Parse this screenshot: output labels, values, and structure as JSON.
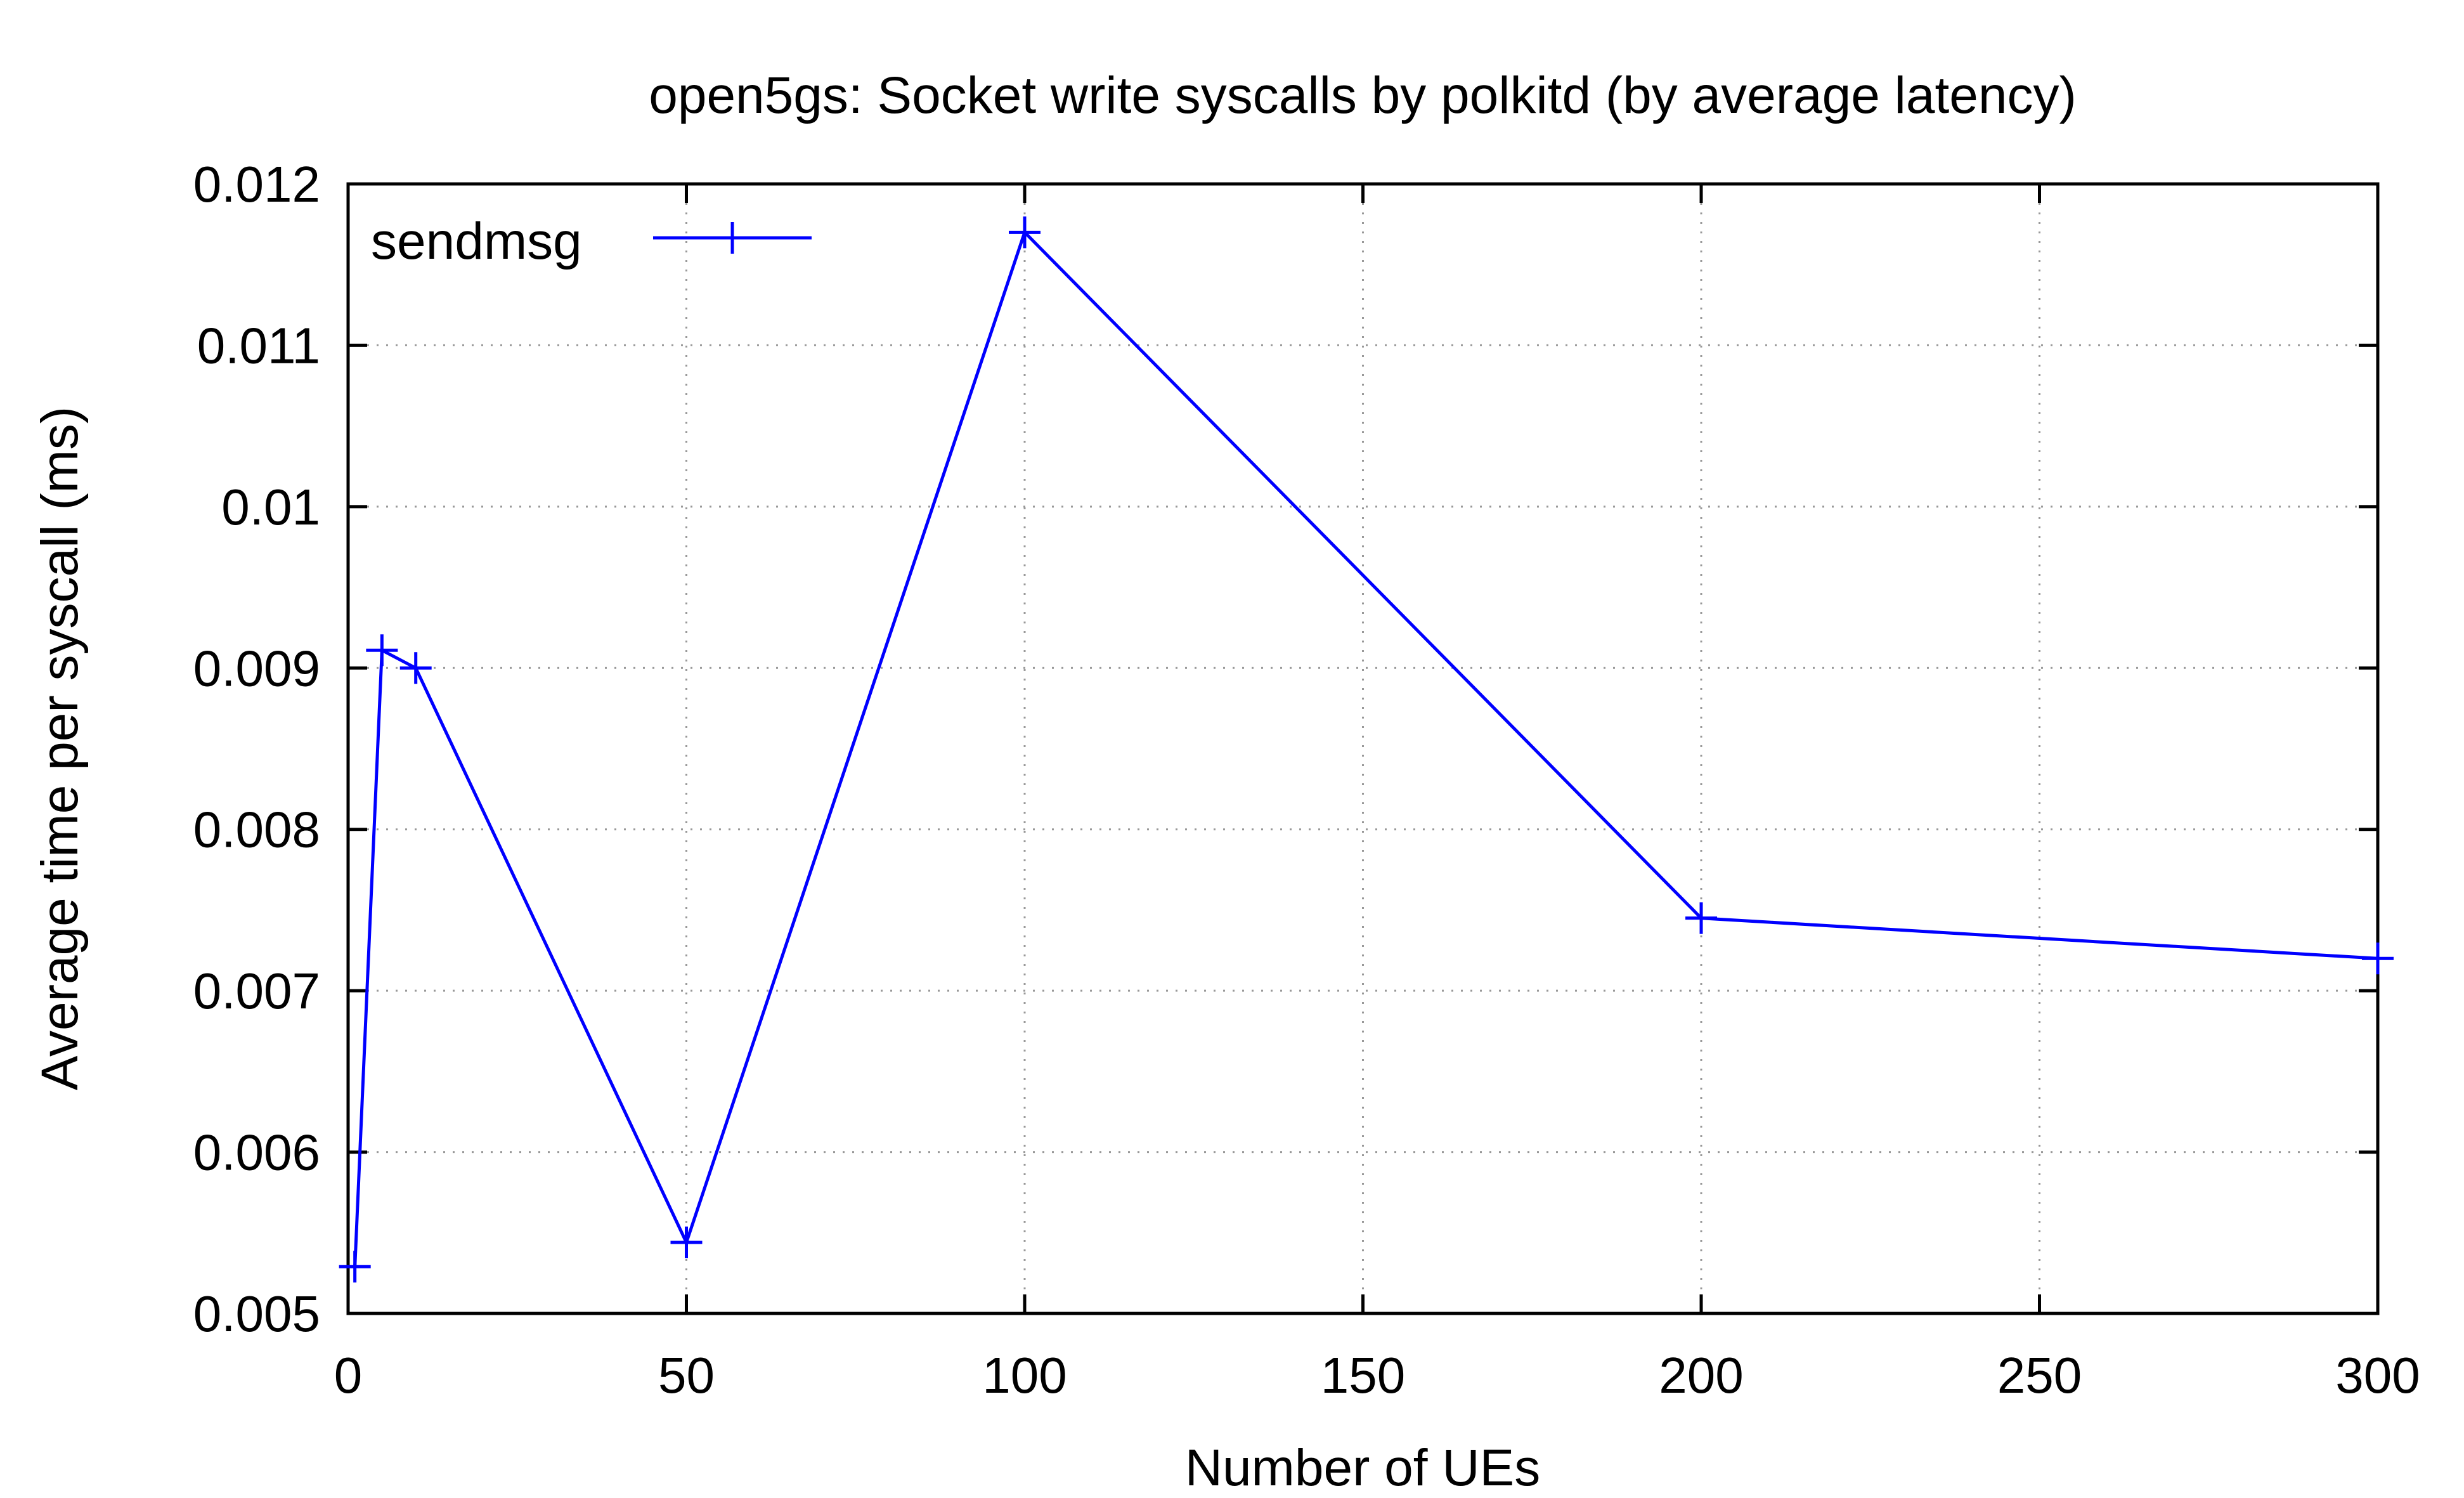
{
  "chart_data": {
    "type": "line",
    "title": "open5gs: Socket write syscalls by polkitd (by average latency)",
    "xlabel": "Number of UEs",
    "ylabel": "Average time per syscall (ms)",
    "xlim": [
      0,
      300
    ],
    "ylim": [
      0.005,
      0.012
    ],
    "x_ticks": [
      0,
      50,
      100,
      150,
      200,
      250,
      300
    ],
    "x_tick_labels": [
      "0",
      "50",
      "100",
      "150",
      "200",
      "250",
      "300"
    ],
    "y_ticks": [
      0.005,
      0.006,
      0.007,
      0.008,
      0.009,
      0.01,
      0.011,
      0.012
    ],
    "y_tick_labels": [
      "0.005",
      "0.006",
      "0.007",
      "0.008",
      "0.009",
      "0.01",
      "0.011",
      "0.012"
    ],
    "grid": true,
    "legend_position": "top-left",
    "series": [
      {
        "name": "sendmsg",
        "color": "#0000ff",
        "marker": "plus",
        "x": [
          1,
          5,
          10,
          50,
          100,
          200,
          300
        ],
        "y": [
          0.00529,
          0.00911,
          0.009,
          0.00544,
          0.0117,
          0.00745,
          0.0072
        ]
      }
    ]
  }
}
